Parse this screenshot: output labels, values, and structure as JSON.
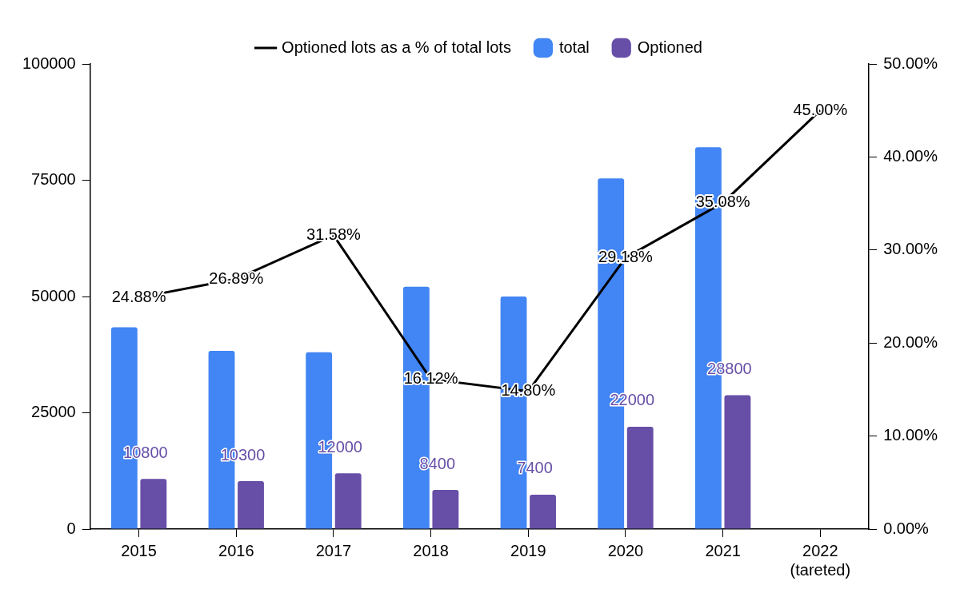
{
  "chart_data": {
    "type": "bar",
    "categories": [
      "2015",
      "2016",
      "2017",
      "2018",
      "2019",
      "2020",
      "2021",
      "2022\n(tareted)"
    ],
    "series": [
      {
        "name": "total",
        "type": "bar",
        "color": "#4285f4",
        "values": [
          43400,
          38300,
          38000,
          52100,
          50000,
          75400,
          82100,
          null
        ]
      },
      {
        "name": "Optioned",
        "type": "bar",
        "color": "#674ea7",
        "data_labels": true,
        "values": [
          10800,
          10300,
          12000,
          8400,
          7400,
          22000,
          28800,
          null
        ]
      },
      {
        "name": "Optioned lots as a % of total lots",
        "type": "line",
        "color": "#000000",
        "axis": "y2",
        "data_labels": true,
        "values": [
          24.88,
          26.89,
          31.58,
          16.12,
          14.8,
          29.18,
          35.08,
          45.0
        ],
        "value_labels": [
          "24.88%",
          "26.89%",
          "31.58%",
          "16.12%",
          "14.80%",
          "29.18%",
          "35.08%",
          "45.00%"
        ]
      }
    ],
    "ylim": [
      0,
      100000
    ],
    "yticks": [
      0,
      25000,
      50000,
      75000,
      100000
    ],
    "y2lim": [
      0,
      50
    ],
    "y2ticks": [
      {
        "value": 0,
        "label": "0.00%"
      },
      {
        "value": 10,
        "label": "10.00%"
      },
      {
        "value": 20,
        "label": "20.00%"
      },
      {
        "value": 30,
        "label": "30.00%"
      },
      {
        "value": 40,
        "label": "40.00%"
      },
      {
        "value": 50,
        "label": "50.00%"
      }
    ],
    "grid": false,
    "legend": "top"
  }
}
